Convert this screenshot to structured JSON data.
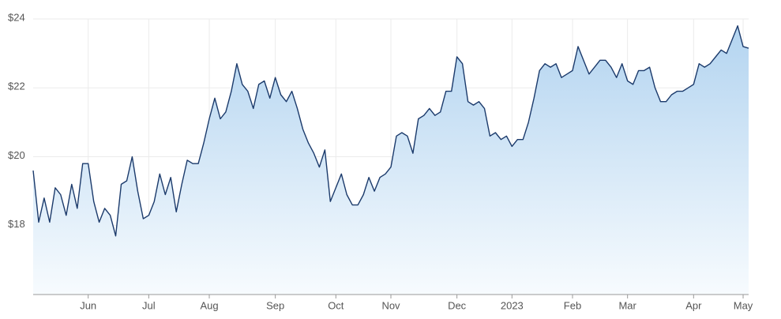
{
  "chart_data": {
    "type": "area",
    "values": [
      19.6,
      18.1,
      18.8,
      18.1,
      19.1,
      18.9,
      18.3,
      19.2,
      18.5,
      19.8,
      19.8,
      18.7,
      18.1,
      18.5,
      18.3,
      17.7,
      19.2,
      19.3,
      20.0,
      19.0,
      18.2,
      18.3,
      18.7,
      19.5,
      18.9,
      19.4,
      18.4,
      19.2,
      19.9,
      19.8,
      19.8,
      20.4,
      21.1,
      21.7,
      21.1,
      21.3,
      21.9,
      22.7,
      22.1,
      21.9,
      21.4,
      22.1,
      22.2,
      21.7,
      22.3,
      21.8,
      21.6,
      21.9,
      21.4,
      20.8,
      20.4,
      20.1,
      19.7,
      20.2,
      18.7,
      19.1,
      19.5,
      18.9,
      18.6,
      18.6,
      18.9,
      19.4,
      19.0,
      19.4,
      19.5,
      19.7,
      20.6,
      20.7,
      20.6,
      20.1,
      21.1,
      21.2,
      21.4,
      21.2,
      21.3,
      21.9,
      21.9,
      22.9,
      22.7,
      21.6,
      21.5,
      21.6,
      21.4,
      20.6,
      20.7,
      20.5,
      20.6,
      20.3,
      20.5,
      20.5,
      21.0,
      21.7,
      22.5,
      22.7,
      22.6,
      22.7,
      22.3,
      22.4,
      22.5,
      23.2,
      22.8,
      22.4,
      22.6,
      22.8,
      22.8,
      22.6,
      22.3,
      22.7,
      22.2,
      22.1,
      22.5,
      22.5,
      22.6,
      22.0,
      21.6,
      21.6,
      21.8,
      21.9,
      21.9,
      22.0,
      22.1,
      22.7,
      22.6,
      22.7,
      22.9,
      23.1,
      23.0,
      23.4,
      23.8,
      23.2,
      23.15
    ],
    "color": "#1b3a6b",
    "xlim": [
      0,
      130
    ],
    "xticks": [
      {
        "value": 10,
        "label": "Jun"
      },
      {
        "value": 21,
        "label": "Jul"
      },
      {
        "value": 32,
        "label": "Aug"
      },
      {
        "value": 44,
        "label": "Sep"
      },
      {
        "value": 55,
        "label": "Oct"
      },
      {
        "value": 65,
        "label": "Nov"
      },
      {
        "value": 77,
        "label": "Dec"
      },
      {
        "value": 87,
        "label": "2023"
      },
      {
        "value": 98,
        "label": "Feb"
      },
      {
        "value": 108,
        "label": "Mar"
      },
      {
        "value": 120,
        "label": "Apr"
      },
      {
        "value": 129,
        "label": "May"
      }
    ],
    "ylim": [
      16,
      24
    ],
    "yticks": [
      {
        "value": 18,
        "label": "$18"
      },
      {
        "value": 20,
        "label": "$20"
      },
      {
        "value": 22,
        "label": "$22"
      },
      {
        "value": 24,
        "label": "$24"
      }
    ],
    "grid": true
  }
}
